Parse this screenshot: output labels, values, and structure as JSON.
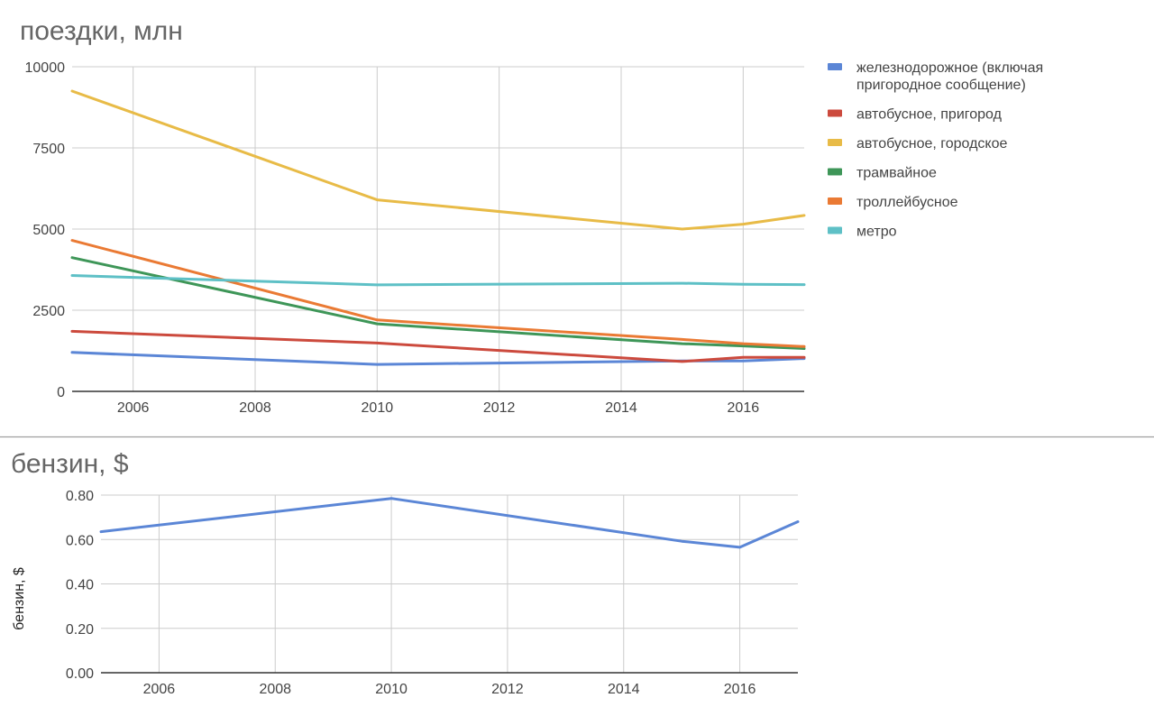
{
  "chart_data": [
    {
      "type": "line",
      "title": "поездки, млн",
      "xlabel": "",
      "ylabel": "",
      "xlim": [
        2005,
        2017
      ],
      "ylim": [
        0,
        10000
      ],
      "x_ticks": [
        "2006",
        "2008",
        "2010",
        "2012",
        "2014",
        "2016"
      ],
      "y_ticks": [
        "0",
        "2500",
        "5000",
        "7500",
        "10000"
      ],
      "grid": true,
      "legend_position": "right",
      "series": [
        {
          "name": "железнодорожное (включая пригородное сообщение)",
          "legend_lines": [
            "железнодорожное (включая",
            "пригородное сообщение)"
          ],
          "color": "#5b86d6",
          "points": [
            [
              2005,
              1200
            ],
            [
              2010,
              830
            ],
            [
              2015,
              940
            ],
            [
              2016,
              940
            ],
            [
              2017,
              1010
            ]
          ]
        },
        {
          "name": "автобусное, пригород",
          "legend_lines": [
            "автобусное, пригород"
          ],
          "color": "#cc4a3d",
          "points": [
            [
              2005,
              1850
            ],
            [
              2010,
              1490
            ],
            [
              2015,
              920
            ],
            [
              2016,
              1050
            ],
            [
              2017,
              1050
            ]
          ]
        },
        {
          "name": "автобусное, городское",
          "legend_lines": [
            "автобусное, городское"
          ],
          "color": "#e8bb47",
          "points": [
            [
              2005,
              9250
            ],
            [
              2010,
              5900
            ],
            [
              2015,
              5000
            ],
            [
              2016,
              5150
            ],
            [
              2017,
              5420
            ]
          ]
        },
        {
          "name": "трамвайное",
          "legend_lines": [
            "трамвайное"
          ],
          "color": "#3e9658",
          "points": [
            [
              2005,
              4120
            ],
            [
              2010,
              2080
            ],
            [
              2015,
              1470
            ],
            [
              2016,
              1400
            ],
            [
              2017,
              1320
            ]
          ]
        },
        {
          "name": "троллейбусное",
          "legend_lines": [
            "троллейбусное"
          ],
          "color": "#ea7a34",
          "points": [
            [
              2005,
              4650
            ],
            [
              2010,
              2200
            ],
            [
              2015,
              1600
            ],
            [
              2016,
              1470
            ],
            [
              2017,
              1380
            ]
          ]
        },
        {
          "name": "метро",
          "legend_lines": [
            "метро"
          ],
          "color": "#5ec0c6",
          "points": [
            [
              2005,
              3570
            ],
            [
              2010,
              3280
            ],
            [
              2015,
              3330
            ],
            [
              2016,
              3300
            ],
            [
              2017,
              3290
            ]
          ]
        }
      ]
    },
    {
      "type": "line",
      "title": "бензин, $",
      "xlabel": "",
      "ylabel": "бензин, $",
      "xlim": [
        2005,
        2017
      ],
      "ylim": [
        0,
        0.8
      ],
      "x_ticks": [
        "2006",
        "2008",
        "2010",
        "2012",
        "2014",
        "2016"
      ],
      "y_ticks": [
        "0.00",
        "0.20",
        "0.40",
        "0.60",
        "0.80"
      ],
      "grid": true,
      "series": [
        {
          "color": "#5b86d6",
          "points": [
            [
              2005,
              0.635
            ],
            [
              2010,
              0.785
            ],
            [
              2015,
              0.592
            ],
            [
              2016,
              0.565
            ],
            [
              2017,
              0.68
            ]
          ]
        }
      ]
    }
  ]
}
